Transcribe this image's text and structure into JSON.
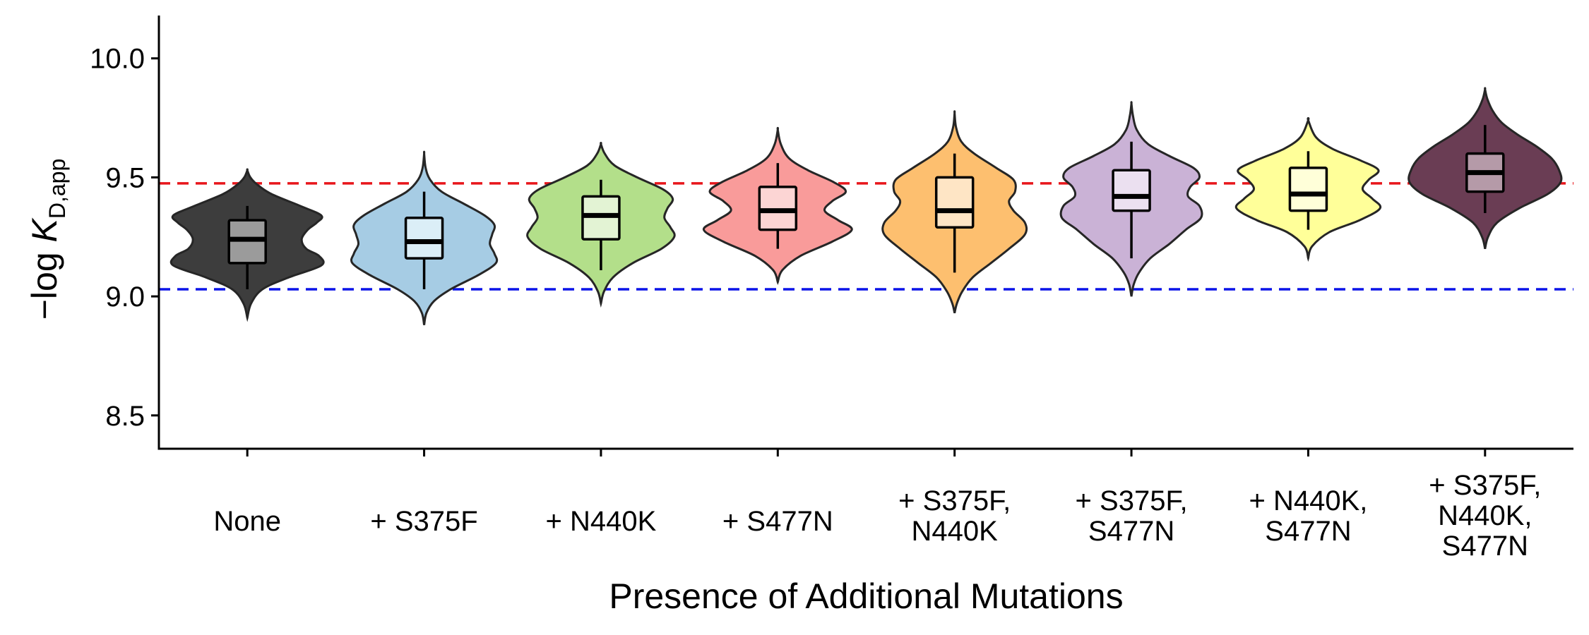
{
  "chart_data": {
    "type": "violin",
    "title": "",
    "xlabel": "Presence of Additional Mutations",
    "ylabel": {
      "prefix": "−log ",
      "symbol": "K",
      "subscript": "D,app"
    },
    "ylim": [
      8.36,
      10.18
    ],
    "yticks": [
      "8.5",
      "9.0",
      "9.5",
      "10.0"
    ],
    "grid": false,
    "legend": "none",
    "reference_lines": [
      {
        "y": 9.475,
        "color": "#e8161b",
        "style": "dashed"
      },
      {
        "y": 9.03,
        "color": "#0b14e8",
        "style": "dashed"
      }
    ],
    "categories": [
      {
        "label_lines": [
          "None"
        ],
        "fill": "#3d3d3d",
        "box_fill": "#9b9b9b",
        "median": 9.24,
        "q1": 9.14,
        "q3": 9.32,
        "whisker_low": 9.03,
        "whisker_high": 9.38,
        "violin": [
          [
            8.91,
            0
          ],
          [
            8.97,
            0.05
          ],
          [
            9.03,
            0.2
          ],
          [
            9.08,
            0.55
          ],
          [
            9.13,
            0.98
          ],
          [
            9.17,
            0.95
          ],
          [
            9.2,
            0.78
          ],
          [
            9.24,
            0.72
          ],
          [
            9.28,
            0.8
          ],
          [
            9.31,
            0.92
          ],
          [
            9.34,
            0.98
          ],
          [
            9.38,
            0.7
          ],
          [
            9.43,
            0.32
          ],
          [
            9.47,
            0.13
          ],
          [
            9.5,
            0.04
          ],
          [
            9.53,
            0
          ]
        ]
      },
      {
        "label_lines": [
          "+ S375F"
        ],
        "fill": "#a6cce4",
        "box_fill": "#dbeef7",
        "median": 9.23,
        "q1": 9.16,
        "q3": 9.33,
        "whisker_low": 9.03,
        "whisker_high": 9.44,
        "violin": [
          [
            8.88,
            0
          ],
          [
            8.93,
            0.03
          ],
          [
            8.98,
            0.13
          ],
          [
            9.03,
            0.35
          ],
          [
            9.09,
            0.72
          ],
          [
            9.14,
            0.95
          ],
          [
            9.18,
            0.93
          ],
          [
            9.22,
            0.87
          ],
          [
            9.26,
            0.9
          ],
          [
            9.3,
            0.93
          ],
          [
            9.34,
            0.8
          ],
          [
            9.39,
            0.52
          ],
          [
            9.44,
            0.23
          ],
          [
            9.49,
            0.08
          ],
          [
            9.54,
            0.02
          ],
          [
            9.6,
            0
          ]
        ]
      },
      {
        "label_lines": [
          "+ N440K"
        ],
        "fill": "#b3df8a",
        "box_fill": "#e3f3d4",
        "median": 9.34,
        "q1": 9.24,
        "q3": 9.42,
        "whisker_low": 9.11,
        "whisker_high": 9.49,
        "violin": [
          [
            8.97,
            0
          ],
          [
            9.02,
            0.04
          ],
          [
            9.08,
            0.16
          ],
          [
            9.14,
            0.42
          ],
          [
            9.2,
            0.8
          ],
          [
            9.25,
            0.97
          ],
          [
            9.29,
            0.92
          ],
          [
            9.33,
            0.84
          ],
          [
            9.37,
            0.88
          ],
          [
            9.41,
            0.95
          ],
          [
            9.45,
            0.82
          ],
          [
            9.5,
            0.48
          ],
          [
            9.55,
            0.18
          ],
          [
            9.6,
            0.05
          ],
          [
            9.64,
            0
          ]
        ]
      },
      {
        "label_lines": [
          "+ S477N"
        ],
        "fill": "#f99b9a",
        "box_fill": "#fcd5d4",
        "median": 9.36,
        "q1": 9.28,
        "q3": 9.46,
        "whisker_low": 9.2,
        "whisker_high": 9.56,
        "violin": [
          [
            9.06,
            0
          ],
          [
            9.11,
            0.06
          ],
          [
            9.17,
            0.3
          ],
          [
            9.23,
            0.72
          ],
          [
            9.28,
            0.98
          ],
          [
            9.32,
            0.8
          ],
          [
            9.36,
            0.62
          ],
          [
            9.4,
            0.72
          ],
          [
            9.44,
            0.9
          ],
          [
            9.48,
            0.74
          ],
          [
            9.53,
            0.4
          ],
          [
            9.58,
            0.15
          ],
          [
            9.64,
            0.04
          ],
          [
            9.7,
            0
          ]
        ]
      },
      {
        "label_lines": [
          "+ S375F,",
          "N440K"
        ],
        "fill": "#fdbf6f",
        "box_fill": "#fee5c5",
        "median": 9.36,
        "q1": 9.29,
        "q3": 9.5,
        "whisker_low": 9.1,
        "whisker_high": 9.6,
        "violin": [
          [
            8.93,
            0
          ],
          [
            8.97,
            0.03
          ],
          [
            9.02,
            0.1
          ],
          [
            9.08,
            0.24
          ],
          [
            9.14,
            0.48
          ],
          [
            9.2,
            0.72
          ],
          [
            9.26,
            0.93
          ],
          [
            9.31,
            0.93
          ],
          [
            9.36,
            0.78
          ],
          [
            9.4,
            0.72
          ],
          [
            9.44,
            0.8
          ],
          [
            9.49,
            0.78
          ],
          [
            9.54,
            0.55
          ],
          [
            9.6,
            0.26
          ],
          [
            9.65,
            0.09
          ],
          [
            9.71,
            0.02
          ],
          [
            9.77,
            0
          ]
        ]
      },
      {
        "label_lines": [
          "+ S375F,",
          "S477N"
        ],
        "fill": "#cab2d6",
        "box_fill": "#ebe0f0",
        "median": 9.42,
        "q1": 9.36,
        "q3": 9.53,
        "whisker_low": 9.16,
        "whisker_high": 9.65,
        "violin": [
          [
            9.0,
            0
          ],
          [
            9.05,
            0.03
          ],
          [
            9.1,
            0.1
          ],
          [
            9.16,
            0.25
          ],
          [
            9.22,
            0.5
          ],
          [
            9.28,
            0.72
          ],
          [
            9.33,
            0.92
          ],
          [
            9.38,
            0.9
          ],
          [
            9.42,
            0.75
          ],
          [
            9.46,
            0.78
          ],
          [
            9.5,
            0.9
          ],
          [
            9.54,
            0.82
          ],
          [
            9.59,
            0.5
          ],
          [
            9.64,
            0.22
          ],
          [
            9.7,
            0.07
          ],
          [
            9.76,
            0.02
          ],
          [
            9.81,
            0
          ]
        ]
      },
      {
        "label_lines": [
          "+ N440K,",
          "S477N"
        ],
        "fill": "#ffff99",
        "box_fill": "#ffffd9",
        "median": 9.43,
        "q1": 9.36,
        "q3": 9.54,
        "whisker_low": 9.28,
        "whisker_high": 9.61,
        "violin": [
          [
            9.16,
            0
          ],
          [
            9.21,
            0.05
          ],
          [
            9.27,
            0.28
          ],
          [
            9.32,
            0.68
          ],
          [
            9.37,
            0.95
          ],
          [
            9.41,
            0.85
          ],
          [
            9.45,
            0.72
          ],
          [
            9.49,
            0.8
          ],
          [
            9.53,
            0.93
          ],
          [
            9.57,
            0.7
          ],
          [
            9.62,
            0.32
          ],
          [
            9.67,
            0.1
          ],
          [
            9.74,
            0
          ]
        ]
      },
      {
        "label_lines": [
          "+ S375F,",
          "N440K,",
          "S477N"
        ],
        "fill": "#6a3d54",
        "box_fill": "#b59aa8",
        "median": 9.52,
        "q1": 9.44,
        "q3": 9.6,
        "whisker_low": 9.35,
        "whisker_high": 9.72,
        "violin": [
          [
            9.2,
            0
          ],
          [
            9.25,
            0.04
          ],
          [
            9.31,
            0.16
          ],
          [
            9.37,
            0.45
          ],
          [
            9.43,
            0.83
          ],
          [
            9.48,
            1.0
          ],
          [
            9.53,
            0.98
          ],
          [
            9.58,
            0.88
          ],
          [
            9.63,
            0.68
          ],
          [
            9.68,
            0.43
          ],
          [
            9.73,
            0.22
          ],
          [
            9.78,
            0.1
          ],
          [
            9.83,
            0.03
          ],
          [
            9.87,
            0
          ]
        ]
      }
    ]
  }
}
